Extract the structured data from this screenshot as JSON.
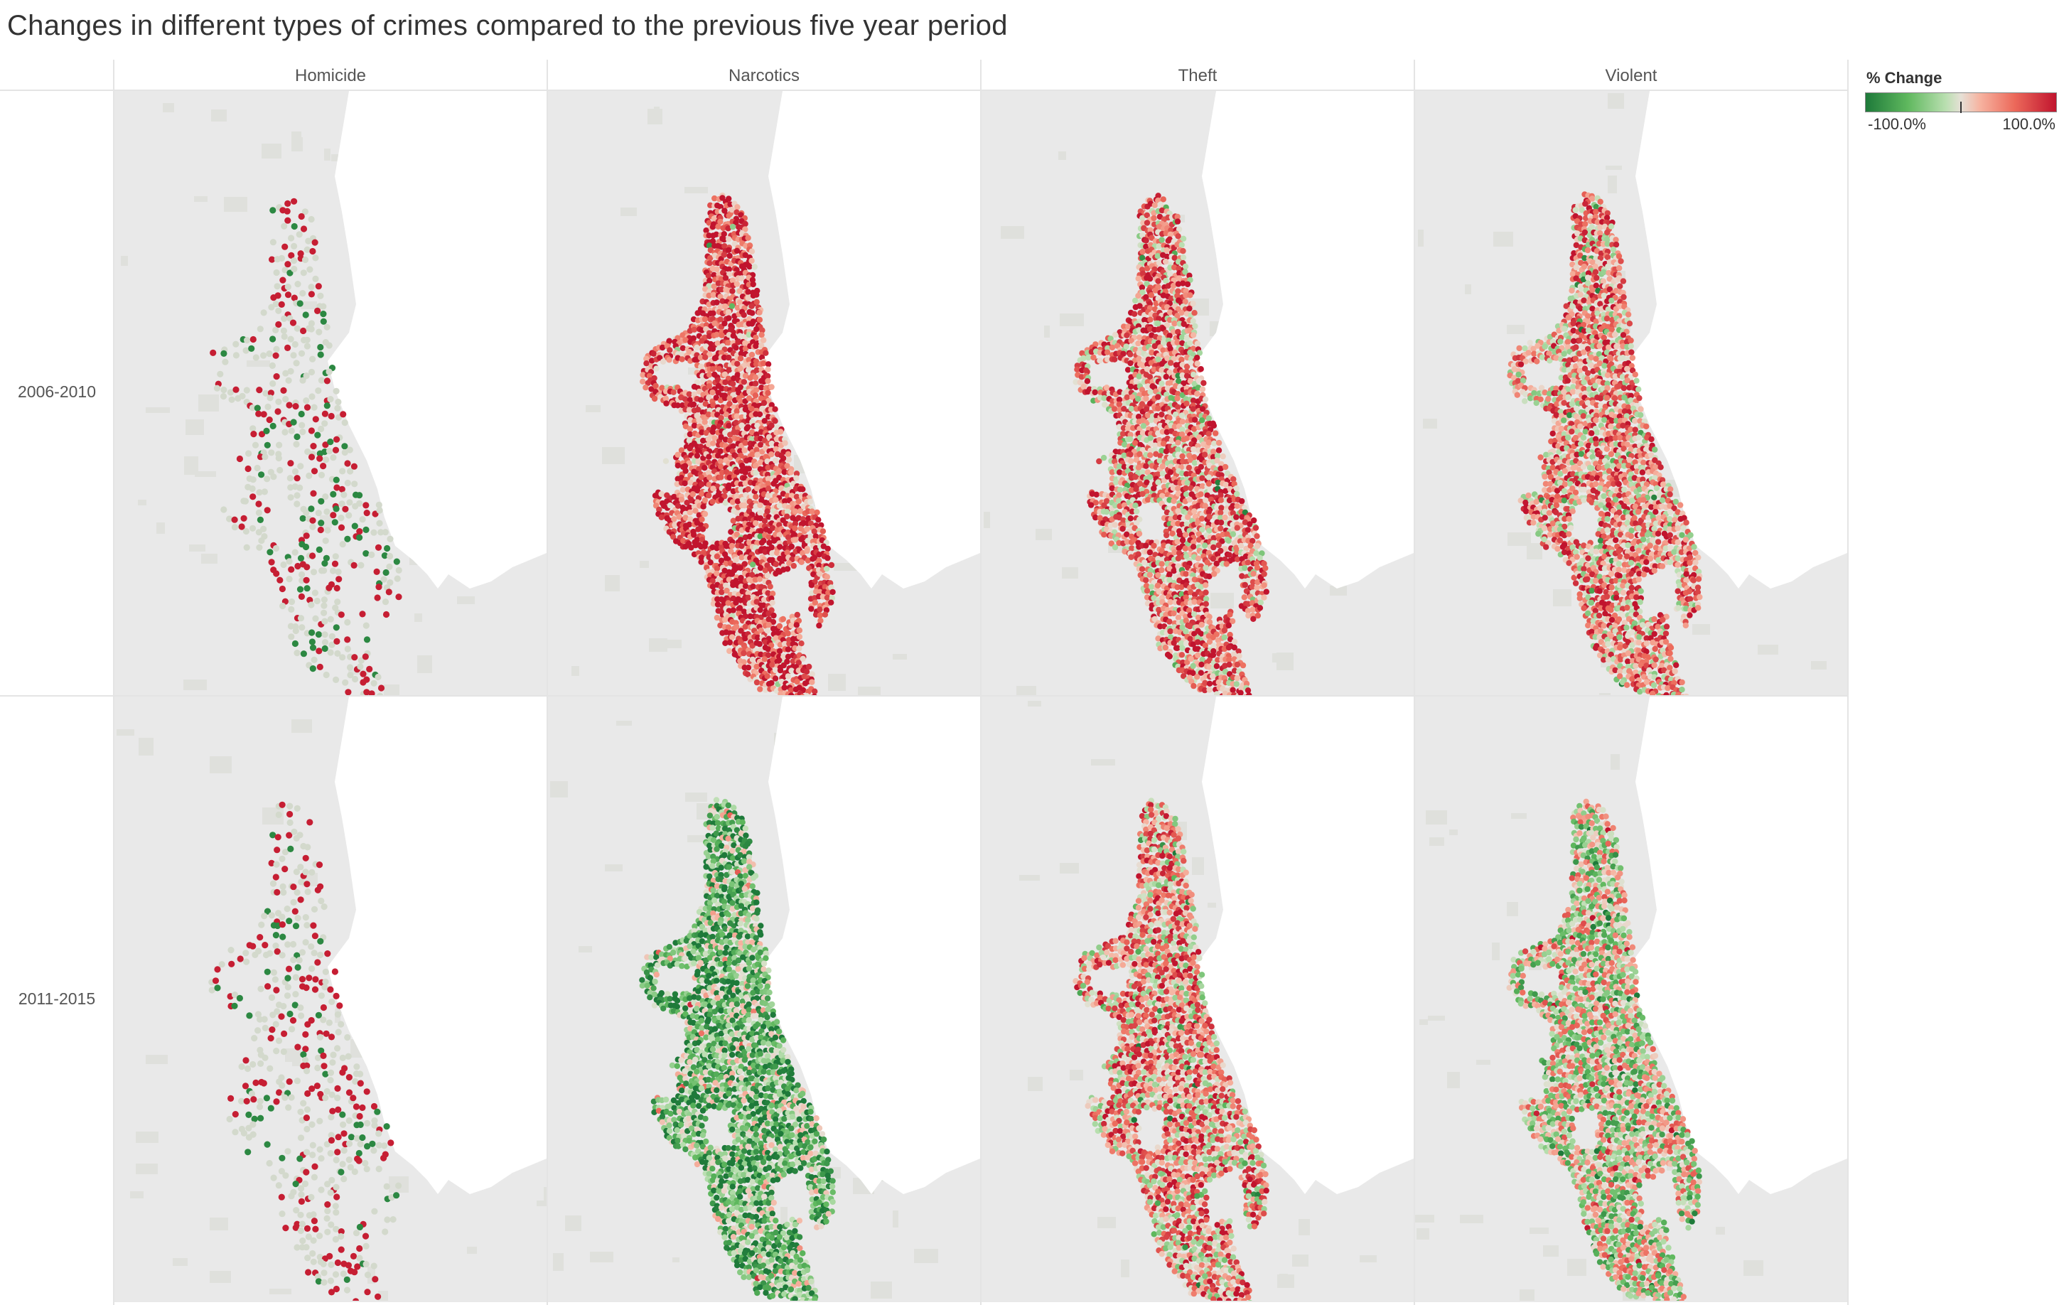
{
  "title": "Changes in different types of crimes compared to the previous five year period",
  "columns": [
    "Homicide",
    "Narcotics",
    "Theft",
    "Violent"
  ],
  "rows": [
    "2006-2010",
    "2011-2015"
  ],
  "legend": {
    "title": "% Change",
    "min_label": "-100.0%",
    "max_label": "100.0%",
    "min": -100,
    "max": 100,
    "colors": {
      "strong_negative": "#1e7a3a",
      "negative": "#5fb85e",
      "neutral": "#e6e0d6",
      "positive": "#ec6a5b",
      "strong_positive": "#c1142e"
    }
  },
  "map_colors": {
    "land": "#e9e9e9",
    "water": "#ffffff",
    "parks": "#dfe0dc",
    "homicide_neutral": "#d3d9cc"
  },
  "panels_mean_change": {
    "Homicide": [
      0.05,
      0.35
    ],
    "Narcotics": [
      0.7,
      -0.5
    ],
    "Theft": [
      0.45,
      0.3
    ],
    "Violent": [
      0.35,
      -0.05
    ]
  }
}
